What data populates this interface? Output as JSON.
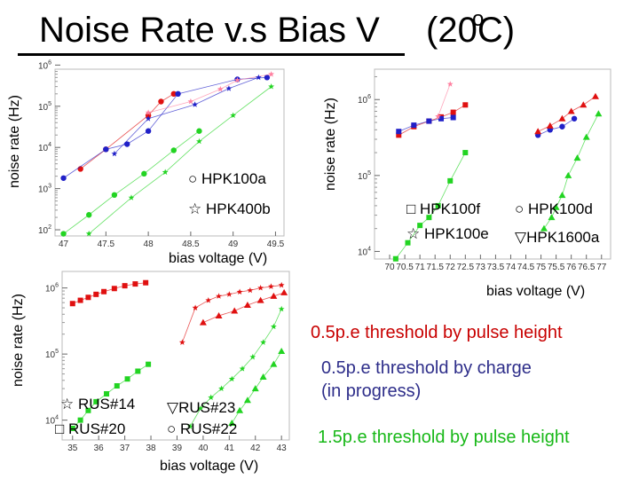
{
  "title": "Noise Rate v.s Bias V",
  "temperature": {
    "value": "(20",
    "unit": "C)",
    "degree": "o"
  },
  "colors": {
    "red": "#e01010",
    "blue": "#2020c8",
    "green": "#22d422",
    "pink": "#ff80a0"
  },
  "legends": {
    "hpk100a": "HPK100a",
    "hpk400b": "HPK400b",
    "hpk100f": "HPK100f",
    "hpk100e": "HPK100e",
    "hpk100d": "HPK100d",
    "hpk1600a": "HPK1600a",
    "rus14": "RUS#14",
    "rus20": "RUS#20",
    "rus23": "RUS#23",
    "rus22": "RUS#22"
  },
  "notes": {
    "pulse_05": "0.5p.e threshold by pulse height",
    "charge_05_line1": "0.5p.e threshold by charge",
    "charge_05_line2": "(in progress)",
    "pulse_15": "1.5p.e threshold by pulse height"
  },
  "chart_data": [
    {
      "id": "hpk-a",
      "type": "scatter",
      "ylabel": "noise rate (Hz)",
      "xlabel": "bias voltage (V)",
      "xlim": [
        46.9,
        49.6
      ],
      "ylim_log10": [
        1.85,
        5.9
      ],
      "x_ticks": [
        "47",
        "47.5",
        "48",
        "48.5",
        "49",
        "49.5"
      ],
      "x_tick_values": [
        47,
        47.5,
        48,
        48.5,
        49,
        49.5
      ],
      "y_ticks": [
        "10^2",
        "10^3",
        "10^4",
        "10^5",
        "10^6"
      ],
      "y_tick_values": [
        2,
        3,
        4,
        5,
        6
      ],
      "series": [
        {
          "name": "HPK100a",
          "color": "#e01010",
          "marker": "circle",
          "x": [
            47.2,
            47.5,
            48.0,
            48.15,
            48.3
          ],
          "y": [
            3000,
            9000,
            60000,
            130000,
            200000
          ]
        },
        {
          "name": "HPK100a",
          "color": "#2020c8",
          "marker": "circle",
          "x": [
            47.0,
            47.5,
            47.75,
            48.0,
            48.35,
            49.05,
            49.4
          ],
          "y": [
            1800,
            9000,
            12000,
            25000,
            200000,
            450000,
            500000
          ]
        },
        {
          "name": "HPK400b",
          "color": "#ff80a0",
          "marker": "star",
          "x": [
            48.0,
            48.5,
            48.85,
            49.05,
            49.45
          ],
          "y": [
            70000,
            130000,
            260000,
            430000,
            600000
          ]
        },
        {
          "name": "HPK400b",
          "color": "#2020c8",
          "marker": "star",
          "x": [
            47.6,
            48.0,
            48.55,
            48.95,
            49.3
          ],
          "y": [
            7000,
            50000,
            110000,
            270000,
            500000
          ]
        },
        {
          "name": "HPK100a",
          "color": "#22d422",
          "marker": "circle",
          "x": [
            47.0,
            47.3,
            47.6,
            47.95,
            48.3,
            48.6
          ],
          "y": [
            80,
            230,
            700,
            2300,
            8500,
            25000
          ]
        },
        {
          "name": "HPK400b",
          "color": "#22d422",
          "marker": "star",
          "x": [
            47.3,
            47.8,
            48.2,
            48.6,
            49.0,
            49.45
          ],
          "y": [
            80,
            600,
            2500,
            14000,
            60000,
            300000
          ]
        }
      ]
    },
    {
      "id": "hpk-b",
      "type": "scatter",
      "ylabel": "noise rate (Hz)",
      "xlabel": "bias voltage (V)",
      "xlim": [
        69.5,
        77.3
      ],
      "ylim_log10": [
        3.9,
        6.4
      ],
      "x_ticks": [
        "70",
        "70.5",
        "71",
        "71.5",
        "72",
        "72.5",
        "73",
        "73.5",
        "74",
        "74.5",
        "75",
        "75.5",
        "76",
        "76.5",
        "77"
      ],
      "x_tick_values": [
        70,
        70.5,
        71,
        71.5,
        72,
        72.5,
        73,
        73.5,
        74,
        74.5,
        75,
        75.5,
        76,
        76.5,
        77
      ],
      "y_ticks": [
        "10^4",
        "10^5",
        "10^6"
      ],
      "y_tick_values": [
        4,
        5,
        6
      ],
      "series": [
        {
          "name": "HPK100f",
          "color": "#e01010",
          "marker": "square",
          "x": [
            70.3,
            70.8,
            71.3,
            71.7,
            72.1,
            72.5
          ],
          "y": [
            340000,
            440000,
            520000,
            590000,
            680000,
            850000
          ]
        },
        {
          "name": "HPK100f",
          "color": "#2020c8",
          "marker": "square",
          "x": [
            70.3,
            70.8,
            71.3,
            71.7,
            72.1
          ],
          "y": [
            380000,
            460000,
            520000,
            560000,
            580000
          ]
        },
        {
          "name": "HPK100e",
          "color": "#ff80a0",
          "marker": "star",
          "x": [
            71.6,
            72.0
          ],
          "y": [
            600000,
            1600000
          ]
        },
        {
          "name": "HPK100d",
          "color": "#2020c8",
          "marker": "circle",
          "x": [
            74.9,
            75.3,
            75.7,
            76.1
          ],
          "y": [
            340000,
            400000,
            440000,
            560000
          ]
        },
        {
          "name": "HPK1600a",
          "color": "#e01010",
          "marker": "triangle",
          "x": [
            74.9,
            75.3,
            75.7,
            76.0,
            76.4,
            76.8
          ],
          "y": [
            380000,
            450000,
            560000,
            700000,
            850000,
            1100000
          ]
        },
        {
          "name": "HPK100f",
          "color": "#22d422",
          "marker": "square",
          "x": [
            70.2,
            70.6,
            71.0,
            71.3,
            71.6,
            72.0,
            72.5
          ],
          "y": [
            8000,
            13000,
            22000,
            28000,
            40000,
            85000,
            200000
          ]
        },
        {
          "name": "HPK1600a",
          "color": "#22d422",
          "marker": "triangle",
          "x": [
            75.1,
            75.35,
            75.5,
            75.7,
            75.9,
            76.2,
            76.5,
            76.9
          ],
          "y": [
            20000,
            28000,
            38000,
            55000,
            100000,
            170000,
            320000,
            650000
          ]
        }
      ]
    },
    {
      "id": "rus",
      "type": "scatter",
      "ylabel": "noise rate (Hz)",
      "xlabel": "bias voltage (V)",
      "xlim": [
        34.6,
        43.3
      ],
      "ylim_log10": [
        3.7,
        6.25
      ],
      "x_ticks": [
        "35",
        "36",
        "37",
        "38",
        "39",
        "40",
        "41",
        "42",
        "43"
      ],
      "x_tick_values": [
        35,
        36,
        37,
        38,
        39,
        40,
        41,
        42,
        43
      ],
      "y_ticks": [
        "10^4",
        "10^5",
        "10^6"
      ],
      "y_tick_values": [
        4,
        5,
        6
      ],
      "series": [
        {
          "name": "RUS#20",
          "color": "#e01010",
          "marker": "square",
          "x": [
            35.0,
            35.3,
            35.6,
            35.9,
            36.2,
            36.6,
            37.0,
            37.4,
            37.8
          ],
          "y": [
            580000,
            650000,
            720000,
            800000,
            880000,
            980000,
            1080000,
            1150000,
            1200000
          ]
        },
        {
          "name": "RUS#14",
          "color": "#e01010",
          "marker": "star",
          "x": [
            39.2,
            39.7,
            40.2,
            40.6,
            41.0,
            41.4,
            41.8,
            42.2,
            42.6,
            43.0
          ],
          "y": [
            150000,
            500000,
            650000,
            750000,
            800000,
            870000,
            920000,
            1000000,
            1050000,
            1100000
          ]
        },
        {
          "name": "RUS#23",
          "color": "#e01010",
          "marker": "triangle",
          "x": [
            40.0,
            40.6,
            41.2,
            41.7,
            42.2,
            42.7,
            43.1
          ],
          "y": [
            300000,
            380000,
            450000,
            550000,
            650000,
            750000,
            850000
          ]
        },
        {
          "name": "RUS#20",
          "color": "#22d422",
          "marker": "square",
          "x": [
            35.0,
            35.3,
            35.6,
            35.9,
            36.3,
            36.7,
            37.1,
            37.5,
            37.9
          ],
          "y": [
            7500,
            10000,
            14000,
            19000,
            25000,
            33000,
            42000,
            55000,
            70000
          ]
        },
        {
          "name": "RUS#14",
          "color": "#22d422",
          "marker": "star",
          "x": [
            39.5,
            39.9,
            40.3,
            40.7,
            41.1,
            41.5,
            41.9,
            42.3,
            42.7,
            43.0
          ],
          "y": [
            8000,
            15000,
            22000,
            30000,
            42000,
            60000,
            90000,
            150000,
            260000,
            480000
          ]
        },
        {
          "name": "RUS#23",
          "color": "#22d422",
          "marker": "triangle",
          "x": [
            41.1,
            41.4,
            41.7,
            42.0,
            42.3,
            42.7,
            43.0
          ],
          "y": [
            9000,
            14000,
            20000,
            30000,
            45000,
            70000,
            110000
          ]
        }
      ]
    }
  ]
}
